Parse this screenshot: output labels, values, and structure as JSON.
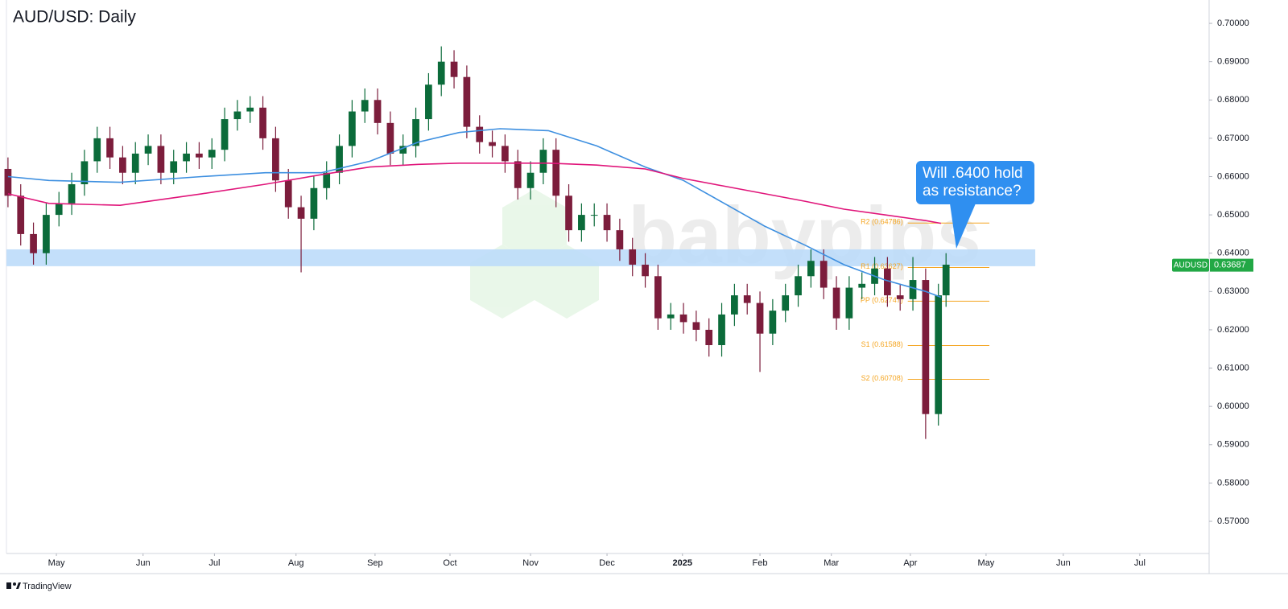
{
  "chart_data": {
    "type": "candlestick",
    "title": "AUD/USD: Daily",
    "watermark": "babypips",
    "footer": "TradingView",
    "annotation": "Will .6400 hold as resistance?",
    "ylim": [
      0.5616,
      0.7061
    ],
    "yticks": [
      {
        "value": 0.7,
        "label": "0.70000"
      },
      {
        "value": 0.69,
        "label": "0.69000"
      },
      {
        "value": 0.68,
        "label": "0.68000"
      },
      {
        "value": 0.67,
        "label": "0.67000"
      },
      {
        "value": 0.66,
        "label": "0.66000"
      },
      {
        "value": 0.65,
        "label": "0.65000"
      },
      {
        "value": 0.64,
        "label": "0.64000"
      },
      {
        "value": 0.63,
        "label": "0.63000"
      },
      {
        "value": 0.62,
        "label": "0.62000"
      },
      {
        "value": 0.61,
        "label": "0.61000"
      },
      {
        "value": 0.6,
        "label": "0.60000"
      },
      {
        "value": 0.59,
        "label": "0.59000"
      },
      {
        "value": 0.58,
        "label": "0.58000"
      },
      {
        "value": 0.57,
        "label": "0.57000"
      }
    ],
    "xlim": [
      10.4,
      482.2
    ],
    "xticks": [
      {
        "value": 30,
        "label": "May"
      },
      {
        "value": 64,
        "label": "Jun"
      },
      {
        "value": 92,
        "label": "Jul"
      },
      {
        "value": 124,
        "label": "Aug"
      },
      {
        "value": 155,
        "label": "Sep"
      },
      {
        "value": 184.4,
        "label": "Oct"
      },
      {
        "value": 216,
        "label": "Nov"
      },
      {
        "value": 246,
        "label": "Dec"
      },
      {
        "value": 275.6,
        "label": "2025"
      },
      {
        "value": 306,
        "label": "Feb"
      },
      {
        "value": 334,
        "label": "Mar"
      },
      {
        "value": 365,
        "label": "Apr"
      },
      {
        "value": 394.7,
        "label": "May"
      },
      {
        "value": 425,
        "label": "Jun"
      },
      {
        "value": 455,
        "label": "Jul"
      }
    ],
    "grid": false,
    "up_color": "#0b6b3a",
    "down_color": "#7c1d3c",
    "candles": {
      "x": [
        11,
        16,
        21,
        26,
        31,
        36,
        41,
        46,
        51,
        56,
        61,
        66,
        71,
        76,
        81,
        86,
        91,
        96,
        101,
        106,
        111,
        116,
        121,
        126,
        131,
        136,
        141,
        146,
        151,
        156,
        161,
        166,
        171,
        176,
        181,
        186,
        191,
        196,
        201,
        206,
        211,
        216,
        221,
        226,
        231,
        236,
        241,
        246,
        251,
        256,
        261,
        266,
        271,
        276,
        281,
        286,
        291,
        296,
        301,
        306,
        311,
        316,
        321,
        326,
        331,
        336,
        341,
        346,
        351,
        356,
        361,
        366,
        371,
        376,
        379
      ],
      "open": [
        0.662,
        0.655,
        0.645,
        0.64,
        0.65,
        0.653,
        0.658,
        0.664,
        0.67,
        0.665,
        0.661,
        0.666,
        0.668,
        0.661,
        0.664,
        0.666,
        0.665,
        0.667,
        0.675,
        0.677,
        0.678,
        0.67,
        0.659,
        0.652,
        0.649,
        0.657,
        0.661,
        0.668,
        0.677,
        0.68,
        0.674,
        0.666,
        0.668,
        0.675,
        0.684,
        0.69,
        0.686,
        0.673,
        0.669,
        0.668,
        0.664,
        0.657,
        0.661,
        0.667,
        0.655,
        0.646,
        0.65,
        0.65,
        0.646,
        0.641,
        0.637,
        0.634,
        0.623,
        0.624,
        0.622,
        0.62,
        0.616,
        0.624,
        0.629,
        0.627,
        0.619,
        0.625,
        0.629,
        0.634,
        0.638,
        0.631,
        0.623,
        0.631,
        0.632,
        0.636,
        0.629,
        0.628,
        0.633,
        0.598,
        0.629
      ],
      "high": [
        0.665,
        0.658,
        0.648,
        0.653,
        0.656,
        0.661,
        0.667,
        0.673,
        0.673,
        0.668,
        0.669,
        0.671,
        0.671,
        0.667,
        0.669,
        0.669,
        0.67,
        0.678,
        0.68,
        0.681,
        0.681,
        0.673,
        0.662,
        0.655,
        0.66,
        0.664,
        0.671,
        0.68,
        0.683,
        0.683,
        0.677,
        0.671,
        0.678,
        0.687,
        0.694,
        0.693,
        0.689,
        0.676,
        0.672,
        0.671,
        0.667,
        0.664,
        0.67,
        0.67,
        0.658,
        0.653,
        0.653,
        0.653,
        0.649,
        0.644,
        0.64,
        0.637,
        0.627,
        0.627,
        0.625,
        0.623,
        0.627,
        0.632,
        0.632,
        0.63,
        0.628,
        0.632,
        0.637,
        0.641,
        0.641,
        0.634,
        0.634,
        0.635,
        0.639,
        0.639,
        0.632,
        0.639,
        0.636,
        0.632,
        0.64
      ],
      "low": [
        0.652,
        0.642,
        0.637,
        0.637,
        0.647,
        0.65,
        0.655,
        0.661,
        0.662,
        0.658,
        0.658,
        0.663,
        0.658,
        0.658,
        0.661,
        0.662,
        0.662,
        0.664,
        0.672,
        0.674,
        0.667,
        0.656,
        0.649,
        0.635,
        0.646,
        0.654,
        0.658,
        0.665,
        0.674,
        0.671,
        0.663,
        0.663,
        0.665,
        0.672,
        0.681,
        0.683,
        0.67,
        0.666,
        0.665,
        0.661,
        0.654,
        0.654,
        0.658,
        0.652,
        0.643,
        0.643,
        0.647,
        0.643,
        0.638,
        0.634,
        0.631,
        0.62,
        0.62,
        0.619,
        0.617,
        0.613,
        0.613,
        0.621,
        0.624,
        0.609,
        0.616,
        0.622,
        0.626,
        0.631,
        0.628,
        0.62,
        0.62,
        0.628,
        0.629,
        0.626,
        0.625,
        0.625,
        0.5915,
        0.595,
        0.626
      ],
      "close": [
        0.655,
        0.645,
        0.64,
        0.65,
        0.653,
        0.658,
        0.664,
        0.67,
        0.665,
        0.661,
        0.666,
        0.668,
        0.661,
        0.664,
        0.666,
        0.665,
        0.667,
        0.675,
        0.677,
        0.678,
        0.67,
        0.659,
        0.652,
        0.649,
        0.657,
        0.661,
        0.668,
        0.677,
        0.68,
        0.674,
        0.666,
        0.668,
        0.675,
        0.684,
        0.69,
        0.686,
        0.673,
        0.669,
        0.668,
        0.664,
        0.657,
        0.661,
        0.667,
        0.655,
        0.646,
        0.65,
        0.65,
        0.646,
        0.641,
        0.637,
        0.634,
        0.623,
        0.624,
        0.622,
        0.62,
        0.616,
        0.624,
        0.629,
        0.627,
        0.619,
        0.625,
        0.629,
        0.634,
        0.638,
        0.631,
        0.623,
        0.631,
        0.632,
        0.636,
        0.629,
        0.628,
        0.633,
        0.598,
        0.629,
        0.637
      ]
    },
    "series": [
      {
        "color": "#3d8fe0",
        "x": [
          11,
          27,
          55,
          87,
          112,
          134,
          153,
          172,
          188,
          204,
          223,
          242,
          261,
          276,
          292,
          308,
          324,
          339,
          355,
          371,
          377
        ],
        "values": [
          0.66,
          0.659,
          0.6585,
          0.66,
          0.661,
          0.661,
          0.664,
          0.669,
          0.6715,
          0.6725,
          0.672,
          0.668,
          0.6625,
          0.659,
          0.653,
          0.647,
          0.642,
          0.637,
          0.633,
          0.63,
          0.6285
        ]
      },
      {
        "color": "#e0157a",
        "x": [
          11,
          27,
          55,
          87,
          112,
          134,
          153,
          172,
          188,
          204,
          223,
          242,
          261,
          276,
          292,
          308,
          324,
          339,
          355,
          371,
          377
        ],
        "values": [
          0.6555,
          0.653,
          0.6525,
          0.6555,
          0.658,
          0.6605,
          0.6625,
          0.6632,
          0.6635,
          0.6635,
          0.6635,
          0.663,
          0.662,
          0.6595,
          0.6575,
          0.6555,
          0.6535,
          0.6515,
          0.65,
          0.6485,
          0.6478
        ]
      }
    ],
    "zone": {
      "low": 0.6366,
      "high": 0.641,
      "x": [
        10.4,
        414
      ],
      "color": "#bcdcfa"
    },
    "pivots": {
      "x": [
        364,
        396
      ],
      "color": "#f5a623",
      "levels": [
        {
          "value": 0.64786,
          "label": "R2 (0.64786)"
        },
        {
          "value": 0.63627,
          "label": "R1 (0.63627)"
        },
        {
          "value": 0.62747,
          "label": "PP (0.62747)"
        },
        {
          "value": 0.61588,
          "label": "S1 (0.61588)"
        },
        {
          "value": 0.60708,
          "label": "S2 (0.60708)"
        }
      ]
    },
    "last_price": {
      "symbol": "AUDUSD",
      "value": 0.63687,
      "color": "#22a845"
    }
  }
}
